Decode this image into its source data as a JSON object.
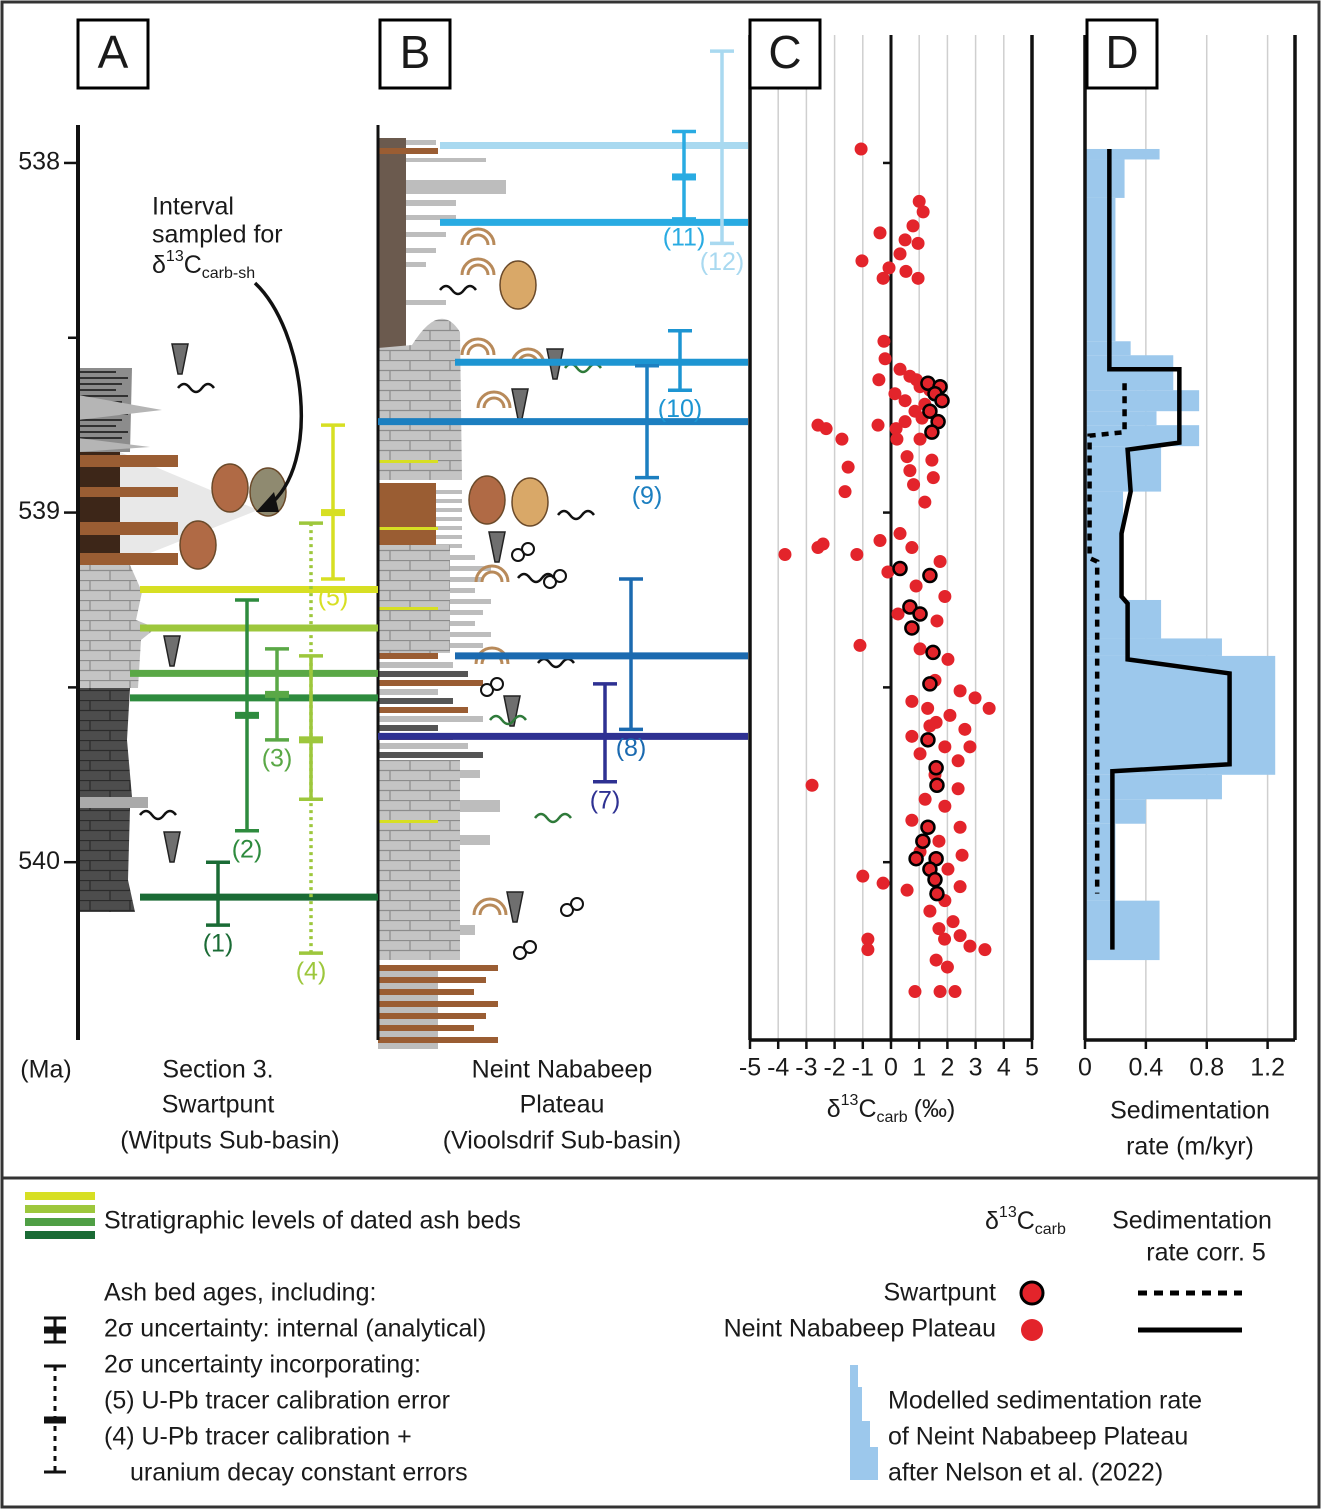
{
  "panel_labels": [
    "A",
    "B",
    "C",
    "D"
  ],
  "age_axis": {
    "label": "(Ma)",
    "lim": [
      537.9,
      540.5
    ],
    "ticks": [
      538,
      539,
      540
    ],
    "minor_ticks": [
      538.5,
      539.5
    ]
  },
  "annotation": {
    "lines": [
      "Interval",
      "sampled for"
    ],
    "delta": "δ",
    "sup": "13",
    "base": "C",
    "sub": "carb-sh"
  },
  "sections": [
    {
      "lines": [
        "Section 3.",
        "Swartpunt",
        "(Witputs Sub-basin)"
      ]
    },
    {
      "lines": [
        "Neint Nababeep",
        "Plateau",
        "(Vioolsdrif Sub-basin)"
      ]
    }
  ],
  "ash_beds": [
    {
      "label": "(1)",
      "color": "#1a6b35",
      "level": 540.1,
      "range": [
        540.0,
        540.18
      ]
    },
    {
      "label": "(2)",
      "color": "#2e8b3e",
      "level": 539.53,
      "range": [
        539.25,
        539.91
      ],
      "internal": 539.58
    },
    {
      "label": "(3)",
      "color": "#5aa846",
      "level": 539.46,
      "range": [
        539.39,
        539.65
      ],
      "internal": 539.52
    },
    {
      "label": "(4)",
      "color": "#9dc73c",
      "level": 539.33,
      "range": [
        539.03,
        540.26
      ],
      "tracer_range": [
        539.41,
        539.82
      ],
      "internal": 539.65,
      "style": "dotted"
    },
    {
      "label": "(5)",
      "color": "#d7df23",
      "level": 539.22,
      "range": [
        538.75,
        539.19
      ],
      "internal": 539.0
    },
    {
      "label": "(7)",
      "color": "#2e3192",
      "level": 539.64,
      "range": [
        539.49,
        539.77
      ]
    },
    {
      "label": "(8)",
      "color": "#1b6ab0",
      "level": 539.41,
      "range": [
        539.19,
        539.62
      ]
    },
    {
      "label": "(9)",
      "color": "#1c7fc0",
      "level": 538.74,
      "range": [
        538.58,
        538.9
      ]
    },
    {
      "label": "(10)",
      "color": "#1d95d2",
      "level": 538.57,
      "range": [
        538.48,
        538.65
      ]
    },
    {
      "label": "(11)",
      "color": "#29abe2",
      "level": 538.17,
      "range": [
        537.91,
        538.16
      ],
      "internal": 538.04
    },
    {
      "label": "(12)",
      "color": "#a9d9f0",
      "level": 537.95,
      "range": [
        537.68,
        538.23
      ]
    }
  ],
  "chart_data": [
    {
      "type": "scatter",
      "xlabel": {
        "delta": "δ",
        "sup": "13",
        "base": "C",
        "sub": "carb",
        "unit": "(‰)"
      },
      "xlim": [
        -5,
        5
      ],
      "xticks": [
        -5,
        -4,
        -3,
        -2,
        -1,
        0,
        1,
        2,
        3,
        4,
        5
      ],
      "ylim": [
        537.9,
        540.5
      ],
      "grid": true,
      "series": [
        {
          "name": "Swartpunt",
          "color": "#e3242b",
          "edgecolor": "#000000",
          "x": [
            1.31,
            1.74,
            1.56,
            1.81,
            1.38,
            1.67,
            1.45,
            0.32,
            1.38,
            0.67,
            1.03,
            0.74,
            1.49,
            1.38,
            1.31,
            1.6,
            1.63,
            1.31,
            1.13,
            0.89,
            1.6,
            1.38,
            1.56,
            1.63
          ],
          "y": [
            538.63,
            538.64,
            538.66,
            538.68,
            538.71,
            538.74,
            538.77,
            539.16,
            539.18,
            539.27,
            539.29,
            539.33,
            539.4,
            539.49,
            539.65,
            539.73,
            539.78,
            539.9,
            539.94,
            539.99,
            539.99,
            540.02,
            540.05,
            540.09
          ]
        },
        {
          "name": "Neint Nababeep Plateau",
          "color": "#e3242b",
          "x": [
            -1.06,
            1.0,
            1.14,
            0.78,
            -0.39,
            0.5,
            0.96,
            0.32,
            -1.03,
            -0.07,
            0.53,
            -0.28,
            0.96,
            -0.25,
            -0.21,
            0.32,
            -0.43,
            0.67,
            1.03,
            0.14,
            0.5,
            1.38,
            0.85,
            0.5,
            -0.46,
            0.18,
            -2.59,
            -2.3,
            -1.74,
            0.21,
            1.03,
            0.57,
            1.45,
            -1.52,
            0.67,
            -1.63,
            0.32,
            -0.39,
            -2.41,
            -2.59,
            -3.76,
            0.74,
            -1.21,
            1.74,
            -0.11,
            0.89,
            1.91,
            0.25,
            1.63,
            -1.1,
            1.03,
            2.02,
            1.56,
            2.45,
            2.98,
            3.48,
            0.74,
            2.09,
            1.38,
            2.62,
            0.74,
            1.91,
            2.8,
            1.03,
            2.38,
            1.56,
            -2.8,
            2.38,
            1.21,
            1.91,
            0.74,
            2.45,
            1.7,
            1.03,
            2.52,
            2.02,
            -1.0,
            -0.28,
            2.45,
            0.57,
            1.91,
            1.38,
            2.2,
            1.7,
            2.45,
            -0.82,
            -0.82,
            2.8,
            3.33,
            0.85,
            1.74,
            2.27,
            1.2,
            1.1,
            0.9,
            1.5,
            1.2,
            0.8,
            1.3,
            1.6,
            1.6,
            2.0,
            1.9
          ],
          "y": [
            537.96,
            538.11,
            538.14,
            538.18,
            538.2,
            538.22,
            538.23,
            538.26,
            538.28,
            538.3,
            538.31,
            538.33,
            538.33,
            538.51,
            538.56,
            538.59,
            538.62,
            538.61,
            538.64,
            538.66,
            538.68,
            538.65,
            538.71,
            538.74,
            538.75,
            538.76,
            538.75,
            538.76,
            538.79,
            538.79,
            538.79,
            538.84,
            538.85,
            538.87,
            538.88,
            538.94,
            539.06,
            539.08,
            539.09,
            539.1,
            539.12,
            539.1,
            539.12,
            539.14,
            539.17,
            539.21,
            539.24,
            539.29,
            539.31,
            539.38,
            539.39,
            539.42,
            539.48,
            539.51,
            539.53,
            539.56,
            539.54,
            539.58,
            539.61,
            539.62,
            539.64,
            539.67,
            539.67,
            539.69,
            539.71,
            539.75,
            539.78,
            539.79,
            539.82,
            539.84,
            539.88,
            539.9,
            539.94,
            539.97,
            539.98,
            540.02,
            540.04,
            540.06,
            540.07,
            540.08,
            540.11,
            540.14,
            540.17,
            540.19,
            540.21,
            540.22,
            540.25,
            540.24,
            540.25,
            540.37,
            540.37,
            540.37,
            538.69,
            538.73,
            538.62,
            538.9,
            538.97,
            538.92,
            539.56,
            539.6,
            540.28,
            540.3,
            540.22
          ]
        }
      ]
    },
    {
      "type": "line",
      "xlabel": [
        "Sedimentation",
        "rate (m/kyr)"
      ],
      "xlim": [
        0,
        1.38
      ],
      "xticks": [
        0,
        0.4,
        0.8,
        1.2
      ],
      "ylim": [
        537.9,
        540.5
      ],
      "grid": true,
      "area": {
        "name_lines": [
          "Modelled sedimentation rate",
          "of Neint Nababeep Plateau",
          "after Nelson et al. (2022)"
        ],
        "color": "#9cc8ec",
        "bins": [
          537.96,
          537.99,
          538.1,
          538.51,
          538.55,
          538.65,
          538.71,
          538.75,
          538.81,
          538.94,
          539.25,
          539.36,
          539.41,
          539.75,
          539.82,
          539.89,
          540.11,
          540.28
        ],
        "values": [
          0.49,
          0.26,
          0.2,
          0.3,
          0.58,
          0.75,
          0.47,
          0.75,
          0.5,
          0.25,
          0.5,
          0.9,
          1.25,
          0.9,
          0.4,
          0.2,
          0.49
        ]
      },
      "series": [
        {
          "color": "#000000",
          "dash": true,
          "x": [
            0.26,
            0.26,
            0.03,
            0.03,
            0.08,
            0.08
          ],
          "y": [
            538.63,
            538.77,
            538.78,
            539.13,
            539.14,
            540.09
          ]
        },
        {
          "color": "#000000",
          "x": [
            0.16,
            0.16,
            0.62,
            0.62,
            0.28,
            0.3,
            0.24,
            0.24,
            0.28,
            0.28,
            0.95,
            0.95,
            0.18,
            0.18
          ],
          "y": [
            537.96,
            538.59,
            538.59,
            538.8,
            538.82,
            538.94,
            539.06,
            539.24,
            539.26,
            539.42,
            539.46,
            539.72,
            539.74,
            540.25
          ]
        }
      ]
    }
  ],
  "legend": {
    "ash_levels": "Stratigraphic levels of dated ash beds",
    "ages_lines": [
      "Ash bed ages, including:",
      "2σ uncertainty: internal (analytical)",
      "2σ uncertainty incorporating:",
      "(5) U-Pb tracer calibration error",
      "(4) U-Pb tracer calibration +",
      "uranium decay constant errors"
    ],
    "rate_header": [
      "Sedimentation",
      "rate corr. 5"
    ]
  }
}
